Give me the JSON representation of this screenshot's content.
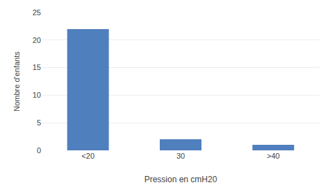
{
  "chart_data": {
    "type": "bar",
    "categories": [
      "<20",
      "30",
      ">40"
    ],
    "values": [
      22,
      2,
      1
    ],
    "color": "#4F7FBD",
    "xlabel": "Pression en cmH20",
    "ylabel": "Nombre d'enfants",
    "ylim": [
      0,
      25
    ],
    "yticks": [
      0,
      5,
      10,
      15,
      20,
      25
    ],
    "grid": true
  }
}
